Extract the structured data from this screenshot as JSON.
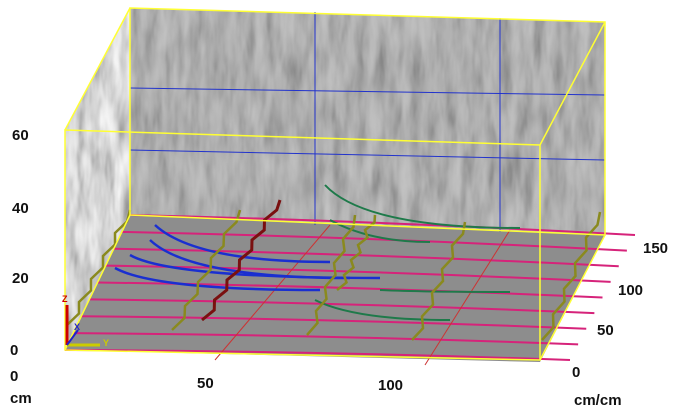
{
  "z_axis": {
    "ticks": [
      "60",
      "40",
      "20",
      "0"
    ]
  },
  "x_axis": {
    "ticks": [
      "0",
      "50",
      "100"
    ],
    "unit": "cm"
  },
  "y_axis": {
    "ticks": [
      "0",
      "50",
      "100",
      "150"
    ],
    "unit": "cm/cm"
  },
  "axis_markers": [
    "X",
    "Y",
    "Z"
  ]
}
